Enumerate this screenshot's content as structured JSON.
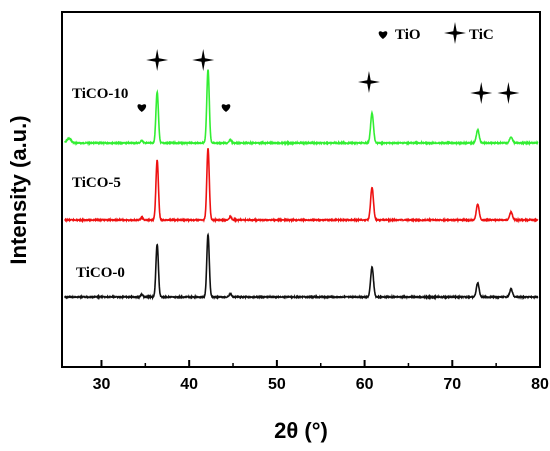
{
  "chart_data": {
    "type": "line",
    "xlabel": "2θ (°)",
    "ylabel": "Intensity (a.u.)",
    "xlim": [
      25.5,
      80
    ],
    "x_ticks": [
      30,
      40,
      50,
      60,
      70,
      80
    ],
    "y_ticks_shown": false,
    "legend": {
      "placement": "top-right",
      "entries": [
        {
          "symbol": "heart",
          "label": "TiO"
        },
        {
          "symbol": "star",
          "label": "TiC"
        }
      ]
    },
    "series": [
      {
        "name": "TiCO-10",
        "color": "#33ee33",
        "offset": 2.0,
        "peaks": [
          {
            "x": 26.3,
            "h": 0.05,
            "w": 0.25
          },
          {
            "x": 34.6,
            "h": 0.03,
            "w": 0.12
          },
          {
            "x": 36.35,
            "h": 0.58,
            "w": 0.14
          },
          {
            "x": 42.15,
            "h": 0.83,
            "w": 0.14
          },
          {
            "x": 44.7,
            "h": 0.04,
            "w": 0.12
          },
          {
            "x": 60.85,
            "h": 0.34,
            "w": 0.16
          },
          {
            "x": 72.9,
            "h": 0.15,
            "w": 0.16
          },
          {
            "x": 76.7,
            "h": 0.07,
            "w": 0.16
          }
        ]
      },
      {
        "name": "TiCO-5",
        "color": "#ee1111",
        "offset": 1.0,
        "peaks": [
          {
            "x": 34.6,
            "h": 0.03,
            "w": 0.12
          },
          {
            "x": 36.35,
            "h": 0.68,
            "w": 0.14
          },
          {
            "x": 42.15,
            "h": 0.81,
            "w": 0.14
          },
          {
            "x": 44.7,
            "h": 0.04,
            "w": 0.12
          },
          {
            "x": 60.85,
            "h": 0.37,
            "w": 0.16
          },
          {
            "x": 72.9,
            "h": 0.18,
            "w": 0.16
          },
          {
            "x": 76.7,
            "h": 0.09,
            "w": 0.16
          }
        ]
      },
      {
        "name": "TiCO-0",
        "color": "#111111",
        "offset": 0.0,
        "peaks": [
          {
            "x": 34.6,
            "h": 0.03,
            "w": 0.12
          },
          {
            "x": 36.35,
            "h": 0.6,
            "w": 0.14
          },
          {
            "x": 42.15,
            "h": 0.71,
            "w": 0.14
          },
          {
            "x": 44.7,
            "h": 0.04,
            "w": 0.12
          },
          {
            "x": 60.85,
            "h": 0.34,
            "w": 0.16
          },
          {
            "x": 72.9,
            "h": 0.16,
            "w": 0.16
          },
          {
            "x": 76.7,
            "h": 0.09,
            "w": 0.16
          }
        ]
      }
    ],
    "markers": [
      {
        "symbol": "heart",
        "x": 34.6,
        "series": "TiCO-10"
      },
      {
        "symbol": "star",
        "x": 36.35,
        "series": "TiCO-10"
      },
      {
        "symbol": "star",
        "x": 41.6,
        "series": "TiCO-10"
      },
      {
        "symbol": "heart",
        "x": 44.2,
        "series": "TiCO-10"
      },
      {
        "symbol": "star",
        "x": 60.5,
        "series": "TiCO-10"
      },
      {
        "symbol": "star",
        "x": 73.3,
        "series": "TiCO-10"
      },
      {
        "symbol": "star",
        "x": 76.4,
        "series": "TiCO-10"
      }
    ]
  }
}
